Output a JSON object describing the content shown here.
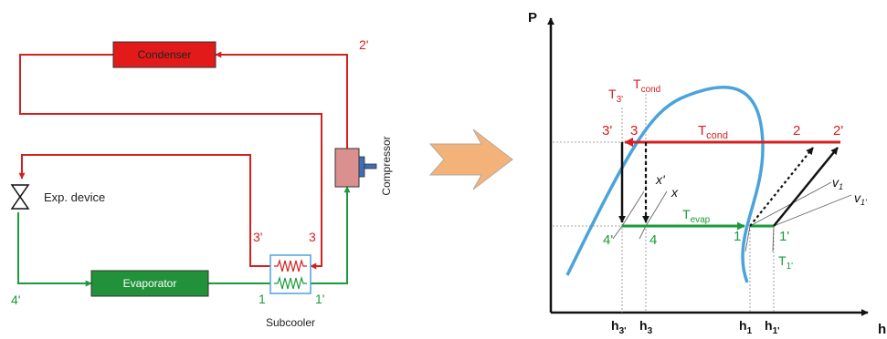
{
  "colors": {
    "red": "#d42020",
    "green": "#1a9a3a",
    "condenser_fill": "#e21a1a",
    "evaporator_fill": "#22923a",
    "dome": "#4aa3dc",
    "compressor_fill": "#d9908f",
    "compressor_piston": "#3d6fb5",
    "subcooler_border": "#4aa3dc",
    "arrow_fill": "#f3b27a"
  },
  "cycle": {
    "condenser_label": "Condenser",
    "evaporator_label": "Evaporator",
    "compressor_label": "Compressor",
    "exp_device_label": "Exp. device",
    "subcooler_label": "Subcooler",
    "state_2p": "2'",
    "state_3p": "3'",
    "state_3": "3",
    "state_4p": "4'",
    "state_1": "1",
    "state_1p": "1'"
  },
  "ph": {
    "y_axis": "P",
    "x_axis": "h",
    "T3p_main": "T",
    "T3p_sub": "3'",
    "Tcond_top_main": "T",
    "Tcond_top_sub": "cond",
    "Tcond_line_main": "T",
    "Tcond_line_sub": "cond",
    "Tevap_main": "T",
    "Tevap_sub": "evap",
    "T1p_main": "T",
    "T1p_sub": "1'",
    "pt_3p": "3'",
    "pt_3": "3",
    "pt_2": "2",
    "pt_2p": "2'",
    "pt_4p": "4'",
    "pt_4": "4",
    "pt_1": "1",
    "pt_1p": "1'",
    "x_prime": "x'",
    "x": "x",
    "v1_main": "v",
    "v1_sub": "1",
    "v1p_main": "v",
    "v1p_sub": "1'",
    "h3p_main": "h",
    "h3p_sub": "3'",
    "h3_main": "h",
    "h3_sub": "3",
    "h1_main": "h",
    "h1_sub": "1",
    "h1p_main": "h",
    "h1p_sub": "1'"
  }
}
